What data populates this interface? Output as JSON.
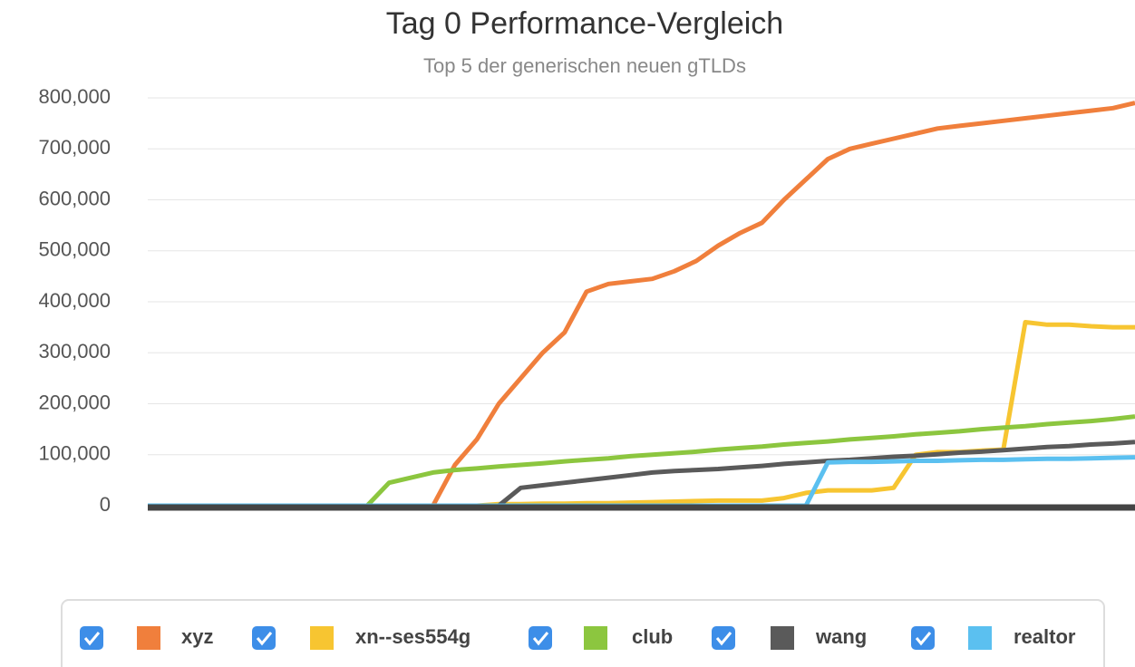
{
  "chart_data": {
    "type": "line",
    "title": "Tag 0 Performance-Vergleich",
    "subtitle": "Top 5 der generischen neuen gTLDs",
    "ylim": [
      0,
      800000
    ],
    "yticks": [
      0,
      {
        "value": 100000,
        "label": "100,000"
      },
      {
        "value": 200000,
        "label": "200,000"
      },
      {
        "value": 300000,
        "label": "300,000"
      },
      {
        "value": 400000,
        "label": "400,000"
      },
      {
        "value": 500000,
        "label": "500,000"
      },
      {
        "value": 600000,
        "label": "600,000"
      },
      {
        "value": 700000,
        "label": "700,000"
      },
      {
        "value": 800000,
        "label": "800,000"
      }
    ],
    "grid": true,
    "legend": "bottom",
    "series": [
      {
        "name": "xyz",
        "color": "#f07f3c",
        "values": [
          0,
          0,
          0,
          0,
          0,
          0,
          0,
          0,
          0,
          0,
          0,
          0,
          0,
          0,
          80000,
          130000,
          200000,
          250000,
          300000,
          340000,
          420000,
          435000,
          440000,
          445000,
          460000,
          480000,
          510000,
          535000,
          555000,
          600000,
          640000,
          680000,
          700000,
          710000,
          720000,
          730000,
          740000,
          745000,
          750000,
          755000,
          760000,
          765000,
          770000,
          775000,
          780000,
          790000
        ]
      },
      {
        "name": "xn--ses554g",
        "color": "#f7c531",
        "values": [
          0,
          0,
          0,
          0,
          0,
          0,
          0,
          0,
          0,
          0,
          0,
          0,
          0,
          0,
          0,
          0,
          3000,
          3000,
          4000,
          4000,
          5000,
          5000,
          6000,
          7000,
          8000,
          9000,
          10000,
          10000,
          10000,
          15000,
          25000,
          30000,
          30000,
          30000,
          35000,
          100000,
          105000,
          105000,
          108000,
          110000,
          360000,
          355000,
          355000,
          352000,
          350000,
          350000
        ]
      },
      {
        "name": "club",
        "color": "#8cc63f",
        "values": [
          0,
          0,
          0,
          0,
          0,
          0,
          0,
          0,
          0,
          0,
          0,
          45000,
          55000,
          65000,
          70000,
          73000,
          77000,
          80000,
          83000,
          87000,
          90000,
          93000,
          97000,
          100000,
          103000,
          106000,
          110000,
          113000,
          116000,
          120000,
          123000,
          126000,
          130000,
          133000,
          136000,
          140000,
          143000,
          146000,
          150000,
          153000,
          156000,
          160000,
          163000,
          166000,
          170000,
          175000
        ]
      },
      {
        "name": "wang",
        "color": "#5a5a5a",
        "values": [
          0,
          0,
          0,
          0,
          0,
          0,
          0,
          0,
          0,
          0,
          0,
          0,
          0,
          0,
          0,
          0,
          0,
          35000,
          40000,
          45000,
          50000,
          55000,
          60000,
          65000,
          68000,
          70000,
          72000,
          75000,
          78000,
          82000,
          85000,
          88000,
          90000,
          93000,
          96000,
          98000,
          101000,
          104000,
          106000,
          109000,
          112000,
          115000,
          117000,
          120000,
          122000,
          125000
        ]
      },
      {
        "name": "realtor",
        "color": "#5bc0f0",
        "values": [
          0,
          0,
          0,
          0,
          0,
          0,
          0,
          0,
          0,
          0,
          0,
          0,
          0,
          0,
          0,
          0,
          0,
          0,
          0,
          0,
          0,
          0,
          0,
          0,
          0,
          0,
          0,
          0,
          0,
          0,
          0,
          85000,
          86000,
          86000,
          87000,
          88000,
          88000,
          89000,
          90000,
          90000,
          91000,
          92000,
          92000,
          93000,
          94000,
          95000
        ]
      }
    ]
  }
}
